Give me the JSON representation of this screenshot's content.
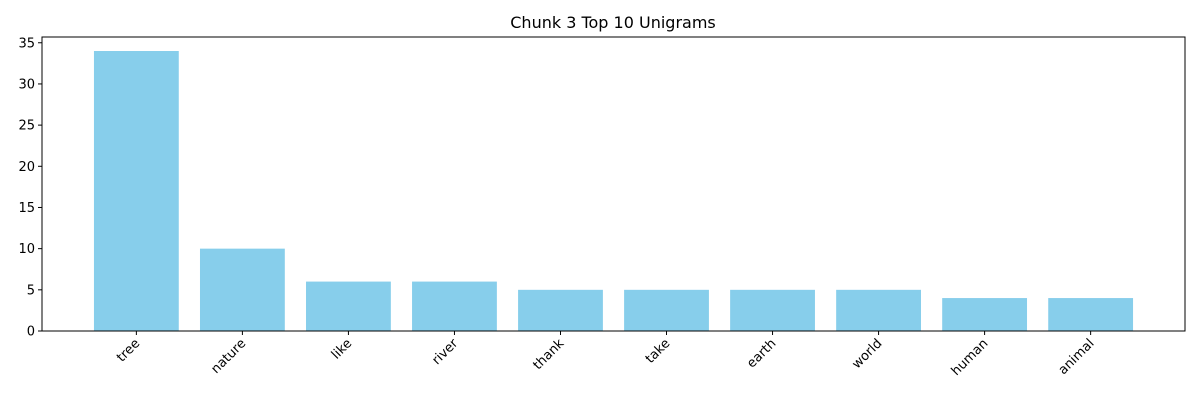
{
  "chart_data": {
    "type": "bar",
    "title": "Chunk 3 Top 10 Unigrams",
    "xlabel": "",
    "ylabel": "",
    "categories": [
      "tree",
      "nature",
      "like",
      "river",
      "thank",
      "take",
      "earth",
      "world",
      "human",
      "animal"
    ],
    "values": [
      34,
      10,
      6,
      6,
      5,
      5,
      5,
      5,
      4,
      4
    ],
    "ylim": [
      0,
      35.7
    ],
    "yticks": [
      0,
      5,
      10,
      15,
      20,
      25,
      30,
      35
    ],
    "bar_color": "#87ceeb",
    "grid": false,
    "legend": "none"
  }
}
